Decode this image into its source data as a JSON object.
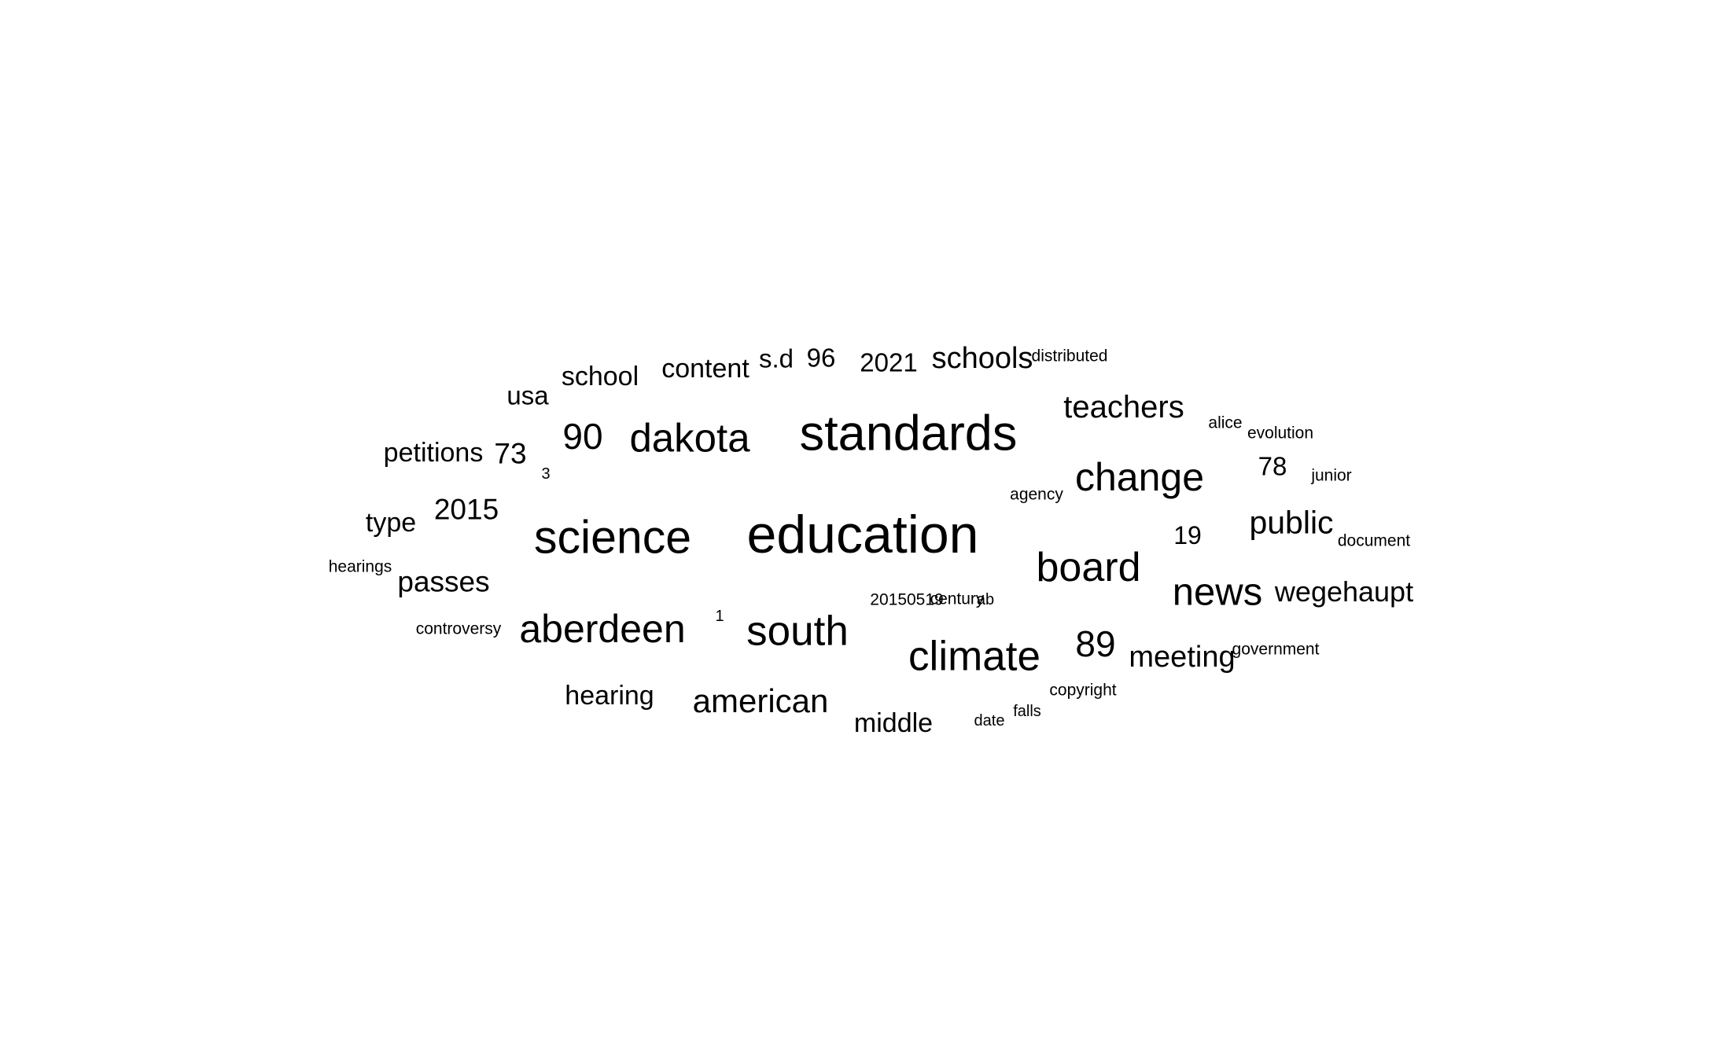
{
  "words": [
    {
      "text": "education",
      "weight": 1.0
    },
    {
      "text": "standards",
      "weight": 0.92
    },
    {
      "text": "science",
      "weight": 0.85
    },
    {
      "text": "climate",
      "weight": 0.74
    },
    {
      "text": "south",
      "weight": 0.74
    },
    {
      "text": "board",
      "weight": 0.72
    },
    {
      "text": "dakota",
      "weight": 0.7
    },
    {
      "text": "aberdeen",
      "weight": 0.68
    },
    {
      "text": "change",
      "weight": 0.68
    },
    {
      "text": "news",
      "weight": 0.67
    },
    {
      "text": "90",
      "weight": 0.62
    },
    {
      "text": "89",
      "weight": 0.62
    },
    {
      "text": "american",
      "weight": 0.54
    },
    {
      "text": "public",
      "weight": 0.52
    },
    {
      "text": "teachers",
      "weight": 0.5
    },
    {
      "text": "schools",
      "weight": 0.48
    },
    {
      "text": "meeting",
      "weight": 0.48
    },
    {
      "text": "passes",
      "weight": 0.46
    },
    {
      "text": "2015",
      "weight": 0.46
    },
    {
      "text": "73",
      "weight": 0.46
    },
    {
      "text": "wegehaupt",
      "weight": 0.43
    },
    {
      "text": "hearing",
      "weight": 0.4
    },
    {
      "text": "middle",
      "weight": 0.4
    },
    {
      "text": "content",
      "weight": 0.4
    },
    {
      "text": "school",
      "weight": 0.4
    },
    {
      "text": "petitions",
      "weight": 0.4
    },
    {
      "text": "type",
      "weight": 0.4
    },
    {
      "text": "usa",
      "weight": 0.38
    },
    {
      "text": "2021",
      "weight": 0.38
    },
    {
      "text": "96",
      "weight": 0.38
    },
    {
      "text": "s.d",
      "weight": 0.38
    },
    {
      "text": "78",
      "weight": 0.38
    },
    {
      "text": "19",
      "weight": 0.37
    },
    {
      "text": "distributed",
      "weight": 0.18
    },
    {
      "text": "alice",
      "weight": 0.17
    },
    {
      "text": "evolution",
      "weight": 0.18
    },
    {
      "text": "junior",
      "weight": 0.17
    },
    {
      "text": "agency",
      "weight": 0.17
    },
    {
      "text": "document",
      "weight": 0.17
    },
    {
      "text": "hearings",
      "weight": 0.17
    },
    {
      "text": "3",
      "weight": 0.15
    },
    {
      "text": "1",
      "weight": 0.15
    },
    {
      "text": "20150519",
      "weight": 0.17
    },
    {
      "text": "century",
      "weight": 0.17
    },
    {
      "text": "ab",
      "weight": 0.16
    },
    {
      "text": "controversy",
      "weight": 0.17
    },
    {
      "text": "government",
      "weight": 0.17
    },
    {
      "text": "copyright",
      "weight": 0.17
    },
    {
      "text": "falls",
      "weight": 0.16
    },
    {
      "text": "date",
      "weight": 0.16
    }
  ],
  "colors": {
    "background": "#ffffff",
    "text": "#000000"
  }
}
